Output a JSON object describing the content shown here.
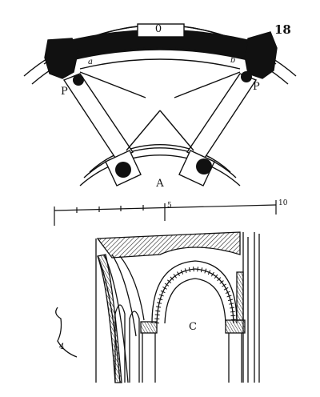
{
  "figure": {
    "number": "18",
    "plan_label": "A",
    "detail_label": "C",
    "pier_labels": [
      "P",
      "P"
    ],
    "point_labels": [
      "a",
      "b"
    ],
    "keystone_label": "0",
    "corner_mark": "4",
    "scale": {
      "tick_labels": [
        "5",
        "10"
      ]
    }
  },
  "colors": {
    "ink": "#111111",
    "hatch": "#222222",
    "paper": "#ffffff"
  }
}
